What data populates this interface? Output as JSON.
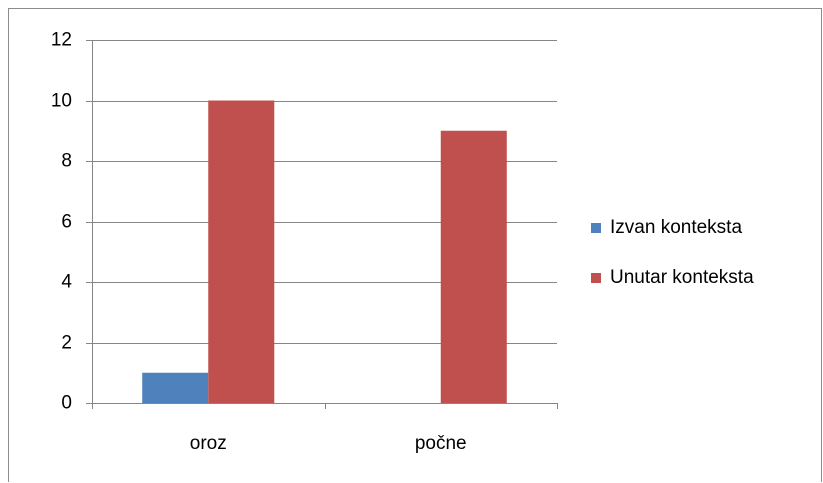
{
  "chart_data": {
    "type": "bar",
    "categories": [
      "oroz",
      "počne"
    ],
    "series": [
      {
        "name": "Izvan konteksta",
        "color": "#4f81bd",
        "values": [
          1,
          0
        ]
      },
      {
        "name": "Unutar konteksta",
        "color": "#c0504d",
        "values": [
          10,
          9
        ]
      }
    ],
    "ylim": [
      0,
      12
    ],
    "yticks": [
      0,
      2,
      4,
      6,
      8,
      10,
      12
    ],
    "grid": true,
    "legend": "right"
  }
}
